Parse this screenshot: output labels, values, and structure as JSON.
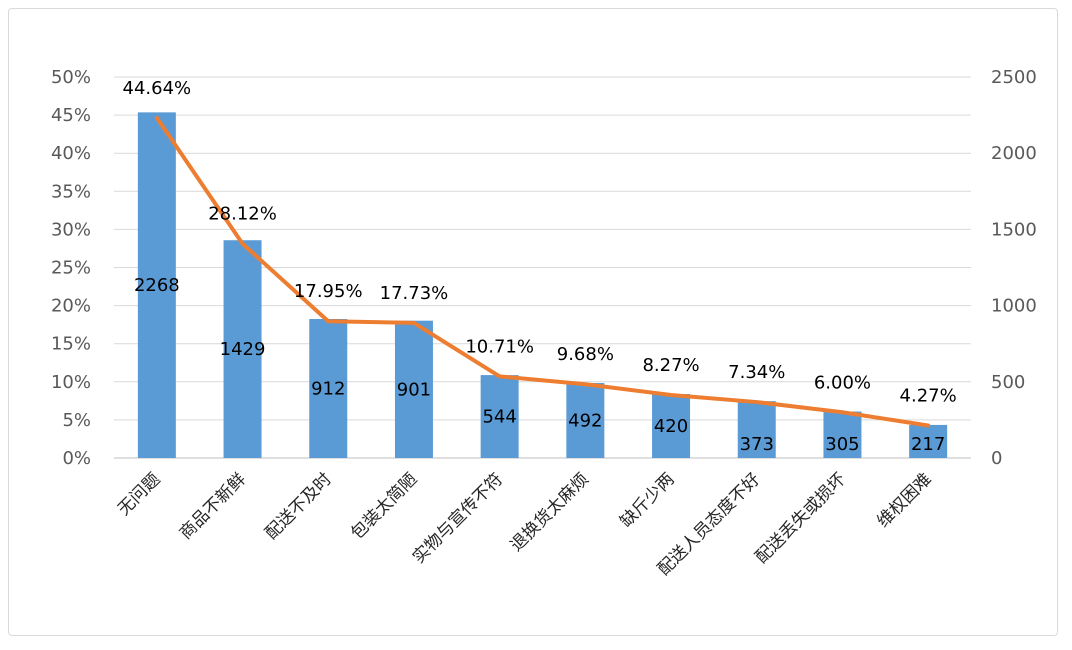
{
  "chart_data": {
    "type": "bar+line",
    "title": "",
    "categories": [
      "无问题",
      "商品不新鲜",
      "配送不及时",
      "包装太简陋",
      "实物与宣传不符",
      "退换货太麻烦",
      "缺斤少两",
      "配送人员态度不好",
      "配送丢失或损坏",
      "维权困难"
    ],
    "series": [
      {
        "type": "bar",
        "axis": "right",
        "color": "#5b9bd5",
        "values": [
          2268,
          1429,
          912,
          901,
          544,
          492,
          420,
          373,
          305,
          217
        ],
        "labels": [
          "2268",
          "1429",
          "912",
          "901",
          "544",
          "492",
          "420",
          "373",
          "305",
          "217"
        ]
      },
      {
        "type": "line",
        "axis": "left",
        "color": "#ed7d31",
        "values": [
          44.64,
          28.12,
          17.95,
          17.73,
          10.71,
          9.68,
          8.27,
          7.34,
          6.0,
          4.27
        ],
        "labels": [
          "44.64%",
          "28.12%",
          "17.95%",
          "17.73%",
          "10.71%",
          "9.68%",
          "8.27%",
          "7.34%",
          "6.00%",
          "4.27%"
        ]
      }
    ],
    "y_left": {
      "min": 0,
      "max": 50,
      "ticks": [
        "0%",
        "5%",
        "10%",
        "15%",
        "20%",
        "25%",
        "30%",
        "35%",
        "40%",
        "45%",
        "50%"
      ]
    },
    "y_right": {
      "min": 0,
      "max": 2500,
      "ticks": [
        "0",
        "500",
        "1000",
        "1500",
        "2000",
        "2500"
      ]
    },
    "grid": true,
    "legend": "none"
  }
}
